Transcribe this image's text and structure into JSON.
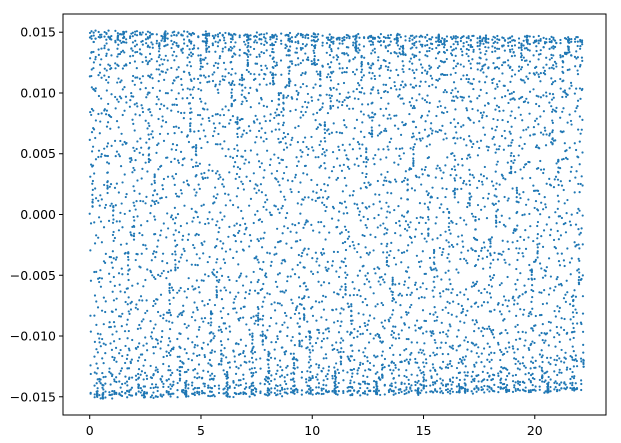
{
  "chart_data": {
    "type": "scatter",
    "title": "",
    "xlabel": "",
    "ylabel": "",
    "xlim": [
      -1.2,
      23.2
    ],
    "ylim": [
      -0.0165,
      0.0165
    ],
    "x_ticks": [
      0,
      5,
      10,
      15,
      20
    ],
    "x_tick_labels": [
      "0",
      "5",
      "10",
      "15",
      "20"
    ],
    "y_ticks": [
      0.015,
      0.01,
      0.005,
      0.0,
      -0.005,
      -0.01,
      -0.015
    ],
    "y_tick_labels": [
      "0.015",
      "0.010",
      "0.005",
      "0.000",
      "−0.005",
      "−0.010",
      "−0.015"
    ],
    "grid": false,
    "legend": "none",
    "marker_color": "#1f77b4",
    "series": [
      {
        "description": "oscillating signal sampled along x; each vertical band spans the full range -0.015..0.015 with points clustered at the extremes; amplitude slowly narrows toward x=22",
        "x_range": [
          0.0,
          22.2
        ],
        "y_amplitude": 0.015,
        "period": 0.37
      }
    ]
  }
}
